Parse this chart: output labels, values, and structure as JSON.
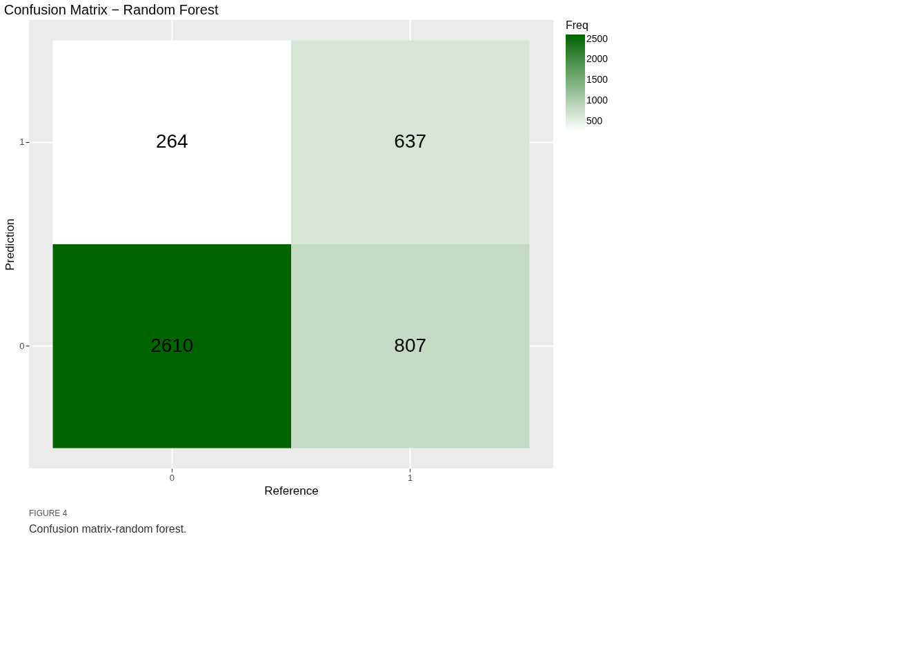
{
  "chart_data": {
    "type": "heatmap",
    "title": "Confusion Matrix − Random Forest",
    "xlabel": "Reference",
    "ylabel": "Prediction",
    "legend_title": "Freq",
    "categories": [
      "0",
      "1"
    ],
    "y_categories": [
      "1",
      "0"
    ],
    "cells": [
      [
        264,
        637
      ],
      [
        2610,
        807
      ]
    ],
    "clim": [
      264,
      2610
    ],
    "cticks": [
      500,
      1000,
      1500,
      2000,
      2500
    ],
    "data_labels": true,
    "grid": true,
    "annotations": [
      "FIGURE 4",
      "Confusion matrix-random forest."
    ]
  }
}
